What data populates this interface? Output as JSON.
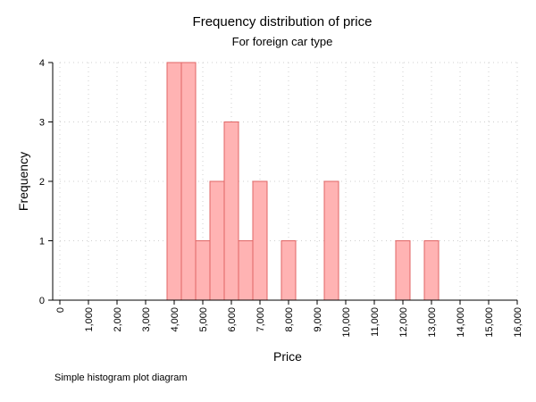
{
  "chart_data": {
    "type": "bar",
    "title": "Frequency distribution of price",
    "subtitle": "For foreign car type",
    "xlabel": "Price",
    "ylabel": "Frequency",
    "xlim": [
      0,
      16000
    ],
    "ylim": [
      0,
      4
    ],
    "x_ticks": [
      "0",
      "1,000",
      "2,000",
      "3,000",
      "4,000",
      "5,000",
      "6,000",
      "7,000",
      "8,000",
      "9,000",
      "10,000",
      "11,000",
      "12,000",
      "13,000",
      "14,000",
      "15,000",
      "16,000"
    ],
    "y_ticks": [
      "0",
      "1",
      "2",
      "3",
      "4"
    ],
    "bin_width": 500,
    "bins": [
      {
        "x0": 3750,
        "x1": 4250,
        "count": 4
      },
      {
        "x0": 4250,
        "x1": 4750,
        "count": 4
      },
      {
        "x0": 4750,
        "x1": 5250,
        "count": 1
      },
      {
        "x0": 5250,
        "x1": 5750,
        "count": 2
      },
      {
        "x0": 5750,
        "x1": 6250,
        "count": 3
      },
      {
        "x0": 6250,
        "x1": 6750,
        "count": 1
      },
      {
        "x0": 6750,
        "x1": 7250,
        "count": 2
      },
      {
        "x0": 7750,
        "x1": 8250,
        "count": 1
      },
      {
        "x0": 9250,
        "x1": 9750,
        "count": 2
      },
      {
        "x0": 11750,
        "x1": 12250,
        "count": 1
      },
      {
        "x0": 12750,
        "x1": 13250,
        "count": 1
      }
    ],
    "grid": true,
    "bar_fill": "#ffb3b3",
    "bar_stroke": "#e06666"
  },
  "note": "Simple histogram plot diagram"
}
